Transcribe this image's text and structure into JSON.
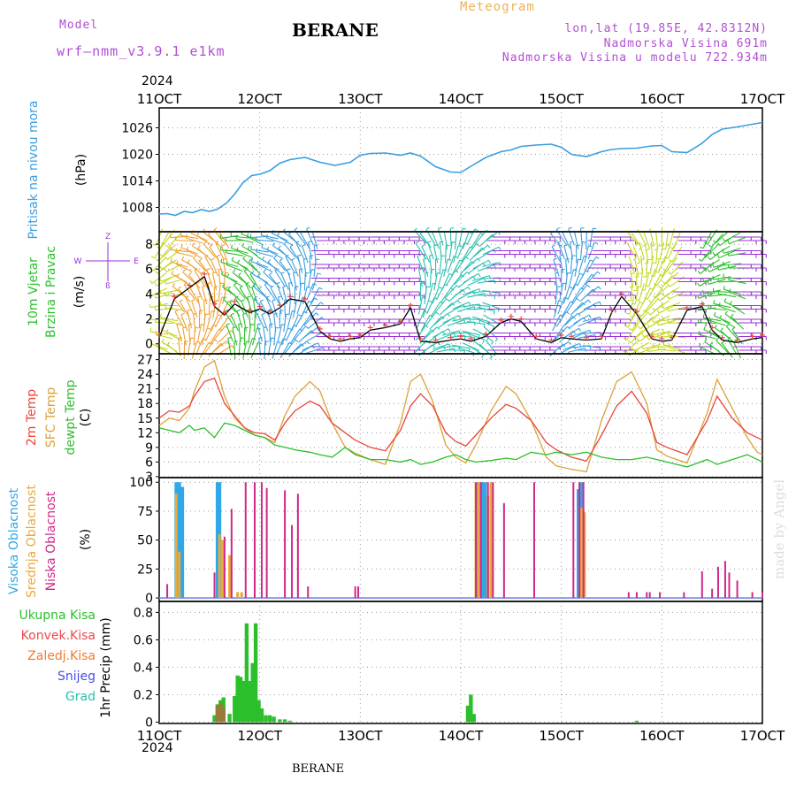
{
  "header": {
    "model_label": "Model",
    "model_name": "wrf—nmm_v3.9.1  e1km",
    "title": "BERANE",
    "meteogram": "Meteogram",
    "lonlat": "lon,lat (19.85E, 42.8312N)",
    "elevation": "Nadmorska Visina 691m",
    "model_elevation": "Nadmorska Visina u modelu 722.934m"
  },
  "footer": {
    "station": "BERANE",
    "credit": "made by Angel"
  },
  "colors": {
    "pressure": "#3a9ee0",
    "temp2m": "#e8453c",
    "sfc_temp": "#dba23a",
    "dewpt": "#2bc02b",
    "wind_purple": "#9a2fd8",
    "high_cloud": "#30a8e8",
    "mid_cloud": "#e8a93a",
    "low_cloud": "#d0288a",
    "total_precip": "#2bc02b",
    "convective": "#e84a4a",
    "frozen": "#f07c30",
    "snow": "#4a4ae8",
    "grad": "#2ac0b0"
  },
  "time_axis": {
    "year": "2024",
    "ticks": [
      "11OCT",
      "12OCT",
      "13OCT",
      "14OCT",
      "15OCT",
      "16OCT",
      "17OCT"
    ]
  },
  "chart_data": [
    {
      "type": "line",
      "name": "pressure",
      "ylabel_main": "Pritisak na nivou mora",
      "ylabel_unit": "(hPa)",
      "y_ticks": [
        "1026",
        "1020",
        "1014",
        "1008"
      ],
      "ylim": [
        1002.5,
        1030.5
      ],
      "x_unit": "days since 11OCT",
      "series": [
        {
          "x": [
            0,
            0.08,
            0.16,
            0.25,
            0.33,
            0.42,
            0.5,
            0.58,
            0.67,
            0.75,
            0.83,
            0.92,
            1.0,
            1.1,
            1.2,
            1.3,
            1.45,
            1.6,
            1.75,
            1.9,
            2.0,
            2.1,
            2.25,
            2.4,
            2.5,
            2.6,
            2.75,
            2.9,
            3.0,
            3.1,
            3.25,
            3.4,
            3.5,
            3.6,
            3.75,
            3.9,
            4.0,
            4.1,
            4.25,
            4.4,
            4.5,
            4.6,
            4.75,
            4.9,
            5.0,
            5.1,
            5.25,
            5.4,
            5.5,
            5.6,
            5.75,
            5.9,
            6.0
          ],
          "values": [
            1006.5,
            1006.6,
            1006.2,
            1007.1,
            1006.8,
            1007.5,
            1007.1,
            1007.6,
            1009.0,
            1011.0,
            1013.5,
            1015.2,
            1015.5,
            1016.3,
            1018.0,
            1018.8,
            1019.3,
            1018.2,
            1017.5,
            1018.2,
            1019.8,
            1020.2,
            1020.3,
            1019.8,
            1020.3,
            1019.6,
            1017.2,
            1016.0,
            1015.9,
            1017.3,
            1019.3,
            1020.6,
            1021.0,
            1021.8,
            1022.1,
            1022.3,
            1021.6,
            1020.0,
            1019.5,
            1020.6,
            1021.1,
            1021.3,
            1021.4,
            1021.9,
            1022.0,
            1020.6,
            1020.4,
            1022.5,
            1024.5,
            1025.7,
            1026.2,
            1026.8,
            1027.2
          ]
        }
      ]
    },
    {
      "type": "line",
      "name": "wind",
      "ylabel_main": "10m Vjetar",
      "ylabel_sub": "Brzina i Pravac",
      "ylabel_unit": "(m/s)",
      "compass": "N E S W",
      "compass_labels": {
        "n": "Z",
        "e": "E",
        "s": "ß",
        "w": "W"
      },
      "y_ticks": [
        "8",
        "6",
        "4",
        "2",
        "0"
      ],
      "ylim": [
        -0.8,
        9.0
      ],
      "x_unit": "days since 11OCT",
      "series": [
        {
          "x": [
            0,
            0.15,
            0.3,
            0.45,
            0.55,
            0.65,
            0.75,
            0.9,
            1.0,
            1.1,
            1.2,
            1.3,
            1.45,
            1.6,
            1.7,
            1.8,
            1.9,
            2.0,
            2.1,
            2.25,
            2.4,
            2.5,
            2.6,
            2.75,
            2.9,
            3.0,
            3.1,
            3.25,
            3.4,
            3.5,
            3.6,
            3.75,
            3.9,
            4.0,
            4.1,
            4.25,
            4.4,
            4.5,
            4.6,
            4.75,
            4.9,
            5.0,
            5.1,
            5.25,
            5.4,
            5.5,
            5.6,
            5.75,
            5.9,
            6.0
          ],
          "values": [
            0.5,
            3.6,
            4.5,
            5.4,
            3.0,
            2.3,
            3.2,
            2.5,
            2.8,
            2.4,
            2.9,
            3.6,
            3.4,
            1.0,
            0.4,
            0.2,
            0.4,
            0.5,
            1.1,
            1.3,
            1.6,
            2.9,
            0.2,
            0.1,
            0.3,
            0.4,
            0.2,
            0.6,
            1.7,
            2.0,
            1.8,
            0.4,
            0.1,
            0.5,
            0.4,
            0.3,
            0.4,
            2.5,
            3.8,
            2.4,
            0.4,
            0.2,
            0.3,
            2.7,
            3.0,
            1.1,
            0.3,
            0.1,
            0.4,
            0.5
          ]
        }
      ]
    },
    {
      "type": "line",
      "name": "temperature",
      "ylabel_main": "2m Temp",
      "ylabel_sub": "SFC Temp",
      "ylabel_sub2": "dewpt Temp",
      "ylabel_unit": "(C)",
      "y_ticks": [
        "27",
        "24",
        "21",
        "18",
        "15",
        "12",
        "9",
        "6",
        "3"
      ],
      "ylim": [
        2.8,
        28.2
      ],
      "x_unit": "days since 11OCT",
      "series": [
        {
          "name": "2m Temp",
          "x": [
            0,
            0.1,
            0.2,
            0.3,
            0.35,
            0.45,
            0.55,
            0.65,
            0.75,
            0.85,
            0.95,
            1.05,
            1.15,
            1.25,
            1.35,
            1.5,
            1.6,
            1.72,
            1.85,
            1.95,
            2.1,
            2.25,
            2.4,
            2.5,
            2.6,
            2.72,
            2.85,
            2.95,
            3.05,
            3.15,
            3.3,
            3.45,
            3.55,
            3.7,
            3.85,
            3.95,
            4.1,
            4.25,
            4.4,
            4.55,
            4.7,
            4.85,
            4.95,
            5.05,
            5.25,
            5.45,
            5.55,
            5.7,
            5.85,
            5.95,
            6.0
          ],
          "values": [
            15.0,
            16.5,
            16.2,
            17.5,
            19.5,
            22.5,
            23.2,
            18.0,
            15.5,
            13.0,
            12.0,
            11.8,
            10.5,
            14.0,
            16.5,
            18.5,
            17.5,
            14.0,
            12.0,
            10.5,
            9.0,
            8.3,
            12.5,
            17.5,
            20.0,
            17.5,
            12.0,
            10.2,
            9.3,
            11.5,
            15.0,
            17.8,
            17.0,
            14.5,
            10.0,
            8.5,
            7.0,
            6.2,
            11.5,
            17.5,
            20.5,
            16.0,
            10.0,
            9.0,
            7.5,
            14.5,
            19.5,
            15.0,
            12.0,
            11.0,
            10.5
          ]
        },
        {
          "name": "SFC Temp",
          "x": [
            0,
            0.1,
            0.2,
            0.3,
            0.35,
            0.45,
            0.55,
            0.65,
            0.75,
            0.85,
            0.95,
            1.05,
            1.15,
            1.25,
            1.35,
            1.5,
            1.6,
            1.72,
            1.85,
            1.95,
            2.1,
            2.25,
            2.4,
            2.5,
            2.6,
            2.72,
            2.85,
            2.95,
            3.05,
            3.15,
            3.3,
            3.45,
            3.55,
            3.7,
            3.85,
            3.95,
            4.1,
            4.25,
            4.4,
            4.55,
            4.7,
            4.85,
            4.95,
            5.05,
            5.25,
            5.45,
            5.55,
            5.7,
            5.85,
            5.95,
            6.0
          ],
          "values": [
            13.5,
            15.0,
            14.5,
            17.0,
            20.5,
            25.5,
            26.8,
            19.5,
            15.0,
            13.0,
            11.5,
            11.0,
            10.0,
            15.5,
            19.5,
            22.5,
            20.5,
            14.0,
            9.0,
            7.8,
            6.5,
            5.5,
            14.0,
            22.5,
            24.0,
            18.5,
            9.5,
            7.0,
            5.8,
            9.5,
            16.5,
            21.5,
            20.0,
            14.5,
            7.0,
            5.2,
            4.5,
            4.0,
            14.5,
            22.5,
            24.5,
            18.0,
            8.5,
            7.2,
            5.8,
            16.0,
            23.0,
            17.0,
            11.0,
            8.0,
            7.5
          ]
        },
        {
          "name": "dewpt Temp",
          "x": [
            0,
            0.1,
            0.2,
            0.3,
            0.35,
            0.45,
            0.55,
            0.65,
            0.75,
            0.85,
            0.95,
            1.05,
            1.15,
            1.25,
            1.35,
            1.5,
            1.6,
            1.72,
            1.85,
            1.95,
            2.1,
            2.25,
            2.4,
            2.5,
            2.6,
            2.72,
            2.85,
            2.95,
            3.05,
            3.15,
            3.3,
            3.45,
            3.55,
            3.7,
            3.85,
            3.95,
            4.1,
            4.25,
            4.4,
            4.55,
            4.7,
            4.85,
            4.95,
            5.05,
            5.25,
            5.45,
            5.55,
            5.7,
            5.85,
            5.95,
            6.0
          ],
          "values": [
            13.0,
            12.5,
            12.0,
            13.5,
            12.5,
            13.0,
            11.0,
            14.0,
            13.5,
            12.5,
            11.5,
            11.0,
            9.5,
            9.0,
            8.5,
            8.0,
            7.5,
            7.0,
            9.0,
            7.5,
            6.5,
            6.5,
            6.0,
            6.5,
            5.5,
            6.0,
            7.0,
            7.5,
            6.5,
            6.0,
            6.3,
            6.8,
            6.5,
            8.0,
            7.5,
            8.0,
            7.5,
            8.0,
            7.0,
            6.5,
            6.5,
            7.0,
            6.5,
            6.0,
            5.0,
            6.5,
            5.5,
            6.5,
            7.5,
            6.5,
            6.0
          ]
        }
      ]
    },
    {
      "type": "bar",
      "name": "cloud",
      "ylabel_main": "Visoka Oblacnost",
      "ylabel_sub": "Srednja Oblacnost",
      "ylabel_sub2": "Niska Oblacnost",
      "ylabel_unit": "(%)",
      "y_ticks": [
        "100",
        "75",
        "50",
        "25",
        "0"
      ],
      "ylim": [
        -3,
        104
      ],
      "x_unit": "days since 11OCT",
      "high": {
        "x": [
          0.17,
          0.2,
          0.23,
          0.58,
          0.6,
          3.18,
          3.21,
          3.24,
          4.17,
          4.2
        ],
        "values": [
          100,
          100,
          96,
          100,
          100,
          100,
          100,
          100,
          94,
          100
        ]
      },
      "mid": {
        "x": [
          0.17,
          0.2,
          0.6,
          0.63,
          0.7,
          0.78,
          0.82,
          3.15,
          3.18,
          3.27,
          3.3,
          4.2,
          4.23
        ],
        "values": [
          90,
          40,
          55,
          50,
          37,
          5,
          5,
          100,
          100,
          88,
          100,
          78,
          74
        ]
      },
      "low": {
        "x": [
          0.08,
          0.55,
          0.65,
          0.72,
          0.86,
          0.95,
          1.02,
          1.07,
          1.25,
          1.32,
          1.38,
          1.48,
          1.95,
          1.98,
          3.15,
          3.2,
          3.27,
          3.32,
          3.43,
          3.73,
          4.12,
          4.18,
          4.22,
          4.67,
          4.75,
          4.85,
          4.88,
          4.98,
          5.22,
          5.4,
          5.5,
          5.56,
          5.63,
          5.67,
          5.75,
          5.9,
          6.0
        ],
        "values": [
          12,
          22,
          53,
          77,
          100,
          100,
          100,
          95,
          93,
          63,
          90,
          10,
          10,
          10,
          100,
          100,
          100,
          100,
          82,
          100,
          100,
          100,
          100,
          5,
          5,
          5,
          5,
          5,
          5,
          23,
          8,
          27,
          32,
          22,
          15,
          5,
          5
        ]
      }
    },
    {
      "type": "bar",
      "name": "precip",
      "ylabel_main": "1hr Precip",
      "ylabel_unit": "(mm)",
      "legend": [
        "Ukupna  Kisa",
        "Konvek.Kisa",
        "Zaledj.Kisa",
        "Snijeg",
        "Grad"
      ],
      "y_ticks": [
        "0.8",
        "0.6",
        "0.4",
        "0.2",
        "0"
      ],
      "ylim": [
        -0.01,
        0.88
      ],
      "x_unit": "days since 11OCT",
      "total": {
        "x": [
          0.55,
          0.58,
          0.61,
          0.64,
          0.7,
          0.75,
          0.78,
          0.81,
          0.84,
          0.87,
          0.9,
          0.93,
          0.96,
          0.99,
          1.02,
          1.06,
          1.1,
          1.14,
          1.2,
          1.25,
          1.3,
          3.07,
          3.1,
          3.13,
          4.75
        ],
        "values": [
          0.05,
          0.13,
          0.16,
          0.18,
          0.06,
          0.19,
          0.34,
          0.33,
          0.3,
          0.72,
          0.3,
          0.43,
          0.72,
          0.16,
          0.1,
          0.05,
          0.05,
          0.04,
          0.02,
          0.02,
          0.01,
          0.12,
          0.2,
          0.06,
          0.01
        ]
      },
      "frozen": {
        "x": [
          0.58,
          0.61,
          0.64
        ],
        "values": [
          0.12,
          0.14,
          0.1
        ]
      }
    }
  ]
}
